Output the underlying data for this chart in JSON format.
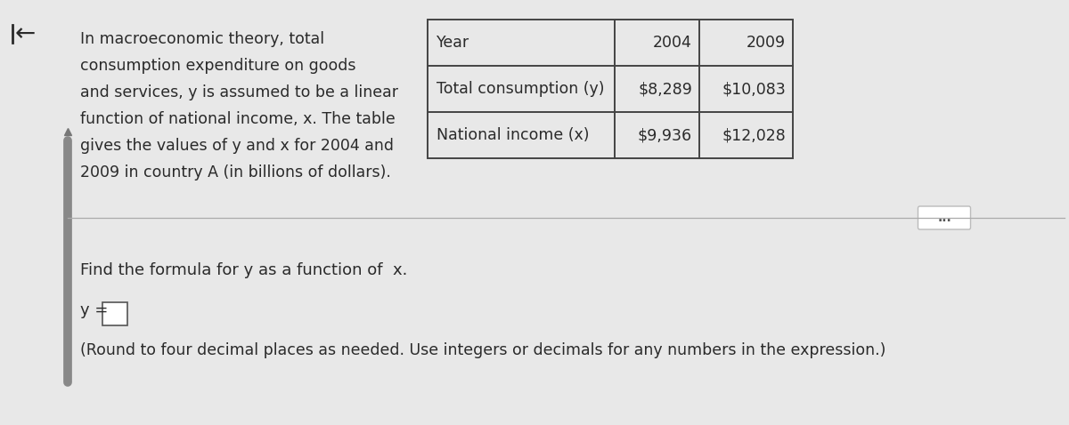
{
  "bg_color": "#e8e8e8",
  "arrow_symbol": "←",
  "paragraph_text_lines": [
    "In macroeconomic theory, total",
    "consumption expenditure on goods",
    "and services, y is assumed to be a linear",
    "function of national income, x. The table",
    "gives the values of y and x for 2004 and",
    "2009 in country A (in billions of dollars)."
  ],
  "table_headers": [
    "Year",
    "2004",
    "2009"
  ],
  "table_row1": [
    "Total consumption (y)",
    "$8,289",
    "$10,083"
  ],
  "table_row2": [
    "National income (x)",
    "$9,936",
    "$12,028"
  ],
  "bottom_text1": "Find the formula for y as a function of  x.",
  "bottom_text2": "y =",
  "bottom_text3": "(Round to four decimal places as needed. Use integers or decimals for any numbers in the expression.)",
  "text_color": "#2a2a2a",
  "table_border_color": "#444444",
  "page_bg": "#e8e8e8"
}
